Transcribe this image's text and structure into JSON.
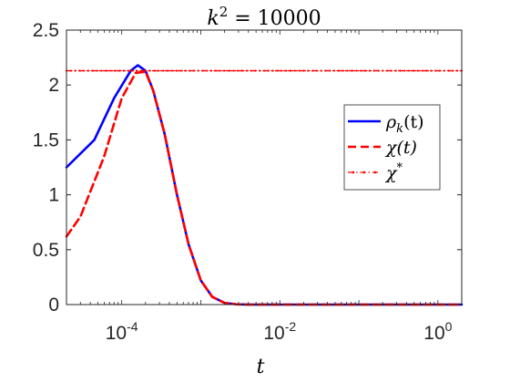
{
  "chart_data": {
    "type": "line",
    "title": "k² = 10000",
    "xlabel": "t",
    "ylabel": "",
    "xscale": "log",
    "xlim": [
      2e-05,
      2
    ],
    "ylim": [
      0,
      2.5
    ],
    "yticks": [
      0,
      0.5,
      1,
      1.5,
      2,
      2.5
    ],
    "ytick_labels": [
      "0",
      "0.5",
      "1",
      "1.5",
      "2",
      "2.5"
    ],
    "xticks": [
      {
        "value": 0.0001,
        "base": "10",
        "exp": "-4"
      },
      {
        "value": 0.01,
        "base": "10",
        "exp": "-2"
      },
      {
        "value": 1,
        "base": "10",
        "exp": "0"
      }
    ],
    "grid": false,
    "legend_position": "right",
    "series": [
      {
        "name": "ρk(t)",
        "color": "#0000ff",
        "style": "solid",
        "x": [
          2e-05,
          4.5e-05,
          8e-05,
          0.00013,
          0.00016,
          0.0002,
          0.00025,
          0.00035,
          0.0005,
          0.0007,
          0.001,
          0.0014,
          0.002,
          0.0028,
          0.004,
          0.006,
          0.01,
          0.1,
          1,
          2
        ],
        "y": [
          1.25,
          1.5,
          1.88,
          2.13,
          2.18,
          2.13,
          1.95,
          1.55,
          1.0,
          0.55,
          0.22,
          0.07,
          0.015,
          0.003,
          0.0,
          0.0,
          0.0,
          0.0,
          0.0,
          0.0
        ]
      },
      {
        "name": "χ(t)",
        "color": "#ff0000",
        "style": "dashed",
        "x": [
          2e-05,
          3e-05,
          6e-05,
          0.0001,
          0.00015,
          0.0002,
          0.00025,
          0.00035,
          0.0005,
          0.0007,
          0.001,
          0.0014,
          0.002,
          0.0028,
          0.004,
          0.006,
          0.01,
          0.1,
          1,
          2
        ],
        "y": [
          0.62,
          0.8,
          1.35,
          1.88,
          2.11,
          2.12,
          1.95,
          1.55,
          1.0,
          0.55,
          0.22,
          0.07,
          0.015,
          0.003,
          0.0,
          0.0,
          0.0,
          0.0,
          0.0,
          0.0
        ]
      },
      {
        "name": "χ*",
        "color": "#ff0000",
        "style": "dash-dot",
        "x": [
          2e-05,
          2
        ],
        "y": [
          2.13,
          2.13
        ]
      }
    ],
    "legend": [
      {
        "text": "ρ",
        "sub": "k",
        "suffix": "(t)"
      },
      {
        "text": "χ(t)",
        "sub": "",
        "suffix": ""
      },
      {
        "text": "χ",
        "sub": "",
        "suffix": "",
        "sup": "*"
      }
    ],
    "title_parts": {
      "base": "k",
      "exp": "2",
      "rest": " = 10000"
    }
  }
}
